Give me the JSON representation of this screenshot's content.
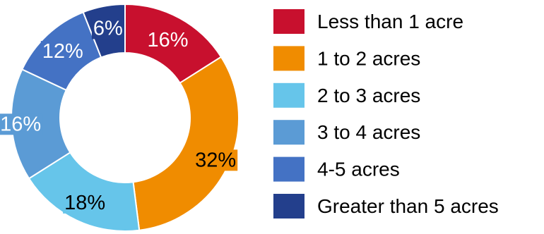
{
  "chart_data": {
    "type": "pie",
    "donut": true,
    "title": "",
    "categories": [
      "Less than 1 acre",
      "1 to 2 acres",
      "2 to 3 acres",
      "3 to 4 acres",
      "4-5 acres",
      "Greater than 5 acres"
    ],
    "values": [
      16,
      32,
      18,
      16,
      12,
      6
    ],
    "value_labels": [
      "16%",
      "32%",
      "18%",
      "16%",
      "12%",
      "6%"
    ],
    "colors": [
      "#c8102e",
      "#f08c00",
      "#66c5ea",
      "#5b9bd5",
      "#4472c4",
      "#233f8c"
    ],
    "label_colors": [
      "#ffffff",
      "#000000",
      "#000000",
      "#ffffff",
      "#ffffff",
      "#ffffff"
    ],
    "legend_position": "right",
    "start_angle": "top, clockwise"
  }
}
